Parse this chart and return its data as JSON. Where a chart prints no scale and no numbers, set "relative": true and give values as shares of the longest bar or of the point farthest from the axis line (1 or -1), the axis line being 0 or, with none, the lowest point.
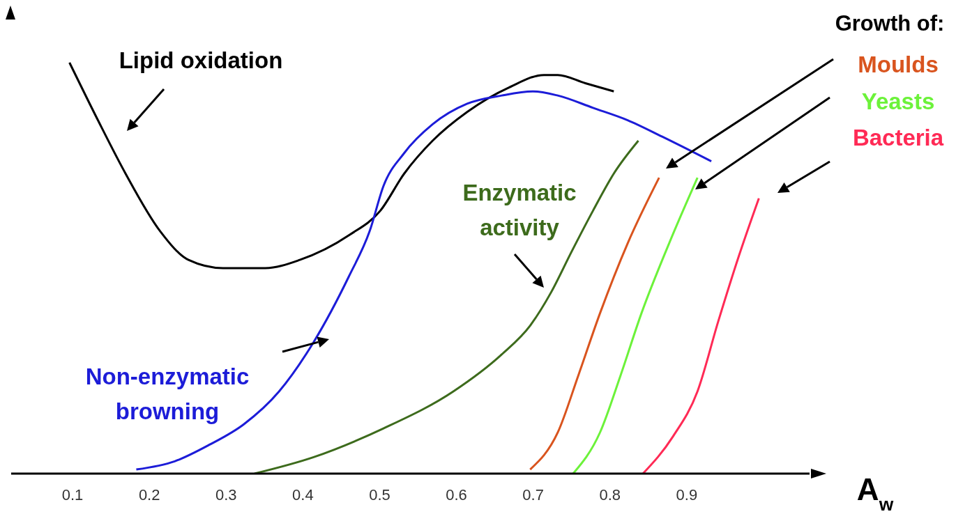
{
  "chart_data": {
    "type": "line",
    "xlabel": "A$_{w}$",
    "relative": true,
    "xlim": [
      0.02,
      1.06
    ],
    "xticks": [
      0.1,
      0.2,
      0.3,
      0.4,
      0.5,
      0.6,
      0.7,
      0.8,
      0.9
    ],
    "grid": false,
    "annotations": [
      "Growth of:"
    ],
    "series": [
      {
        "name": "Lipid oxidation",
        "color": "#000000",
        "x": [
          0.096,
          0.133,
          0.169,
          0.214,
          0.251,
          0.296,
          0.351,
          0.396,
          0.46,
          0.501,
          0.532,
          0.569,
          0.614,
          0.669,
          0.714,
          0.732,
          0.768,
          0.805
        ],
        "values": [
          1.0,
          0.86,
          0.73,
          0.59,
          0.52,
          0.5,
          0.5,
          0.52,
          0.58,
          0.64,
          0.73,
          0.81,
          0.88,
          0.94,
          0.97,
          0.97,
          0.95,
          0.93
        ]
      },
      {
        "name": "Non-enzymatic browning",
        "color": "#1c1cd8",
        "x": [
          0.183,
          0.233,
          0.278,
          0.323,
          0.369,
          0.414,
          0.46,
          0.487,
          0.505,
          0.532,
          0.569,
          0.614,
          0.659,
          0.7,
          0.732,
          0.778,
          0.823,
          0.868,
          0.932
        ],
        "values": [
          0.01,
          0.03,
          0.07,
          0.12,
          0.2,
          0.32,
          0.48,
          0.59,
          0.7,
          0.78,
          0.85,
          0.9,
          0.92,
          0.93,
          0.92,
          0.89,
          0.86,
          0.82,
          0.76
        ]
      },
      {
        "name": "Enzymatic activity",
        "color": "#3d6b1c",
        "x": [
          0.337,
          0.414,
          0.505,
          0.596,
          0.659,
          0.696,
          0.723,
          0.75,
          0.778,
          0.805,
          0.837
        ],
        "values": [
          0.0,
          0.04,
          0.11,
          0.2,
          0.29,
          0.36,
          0.44,
          0.54,
          0.64,
          0.73,
          0.81
        ]
      },
      {
        "name": "Moulds",
        "color": "#d9541e",
        "x": [
          0.696,
          0.732,
          0.759,
          0.787,
          0.823,
          0.864
        ],
        "values": [
          0.01,
          0.1,
          0.24,
          0.39,
          0.56,
          0.72
        ]
      },
      {
        "name": "Yeasts",
        "color": "#6cf23a",
        "x": [
          0.752,
          0.787,
          0.814,
          0.841,
          0.877,
          0.914
        ],
        "values": [
          0.0,
          0.1,
          0.24,
          0.39,
          0.56,
          0.72
        ]
      },
      {
        "name": "Bacteria",
        "color": "#ff2a55",
        "x": [
          0.843,
          0.882,
          0.914,
          0.941,
          0.968,
          0.994
        ],
        "values": [
          0.0,
          0.09,
          0.2,
          0.37,
          0.53,
          0.67
        ]
      }
    ]
  }
}
